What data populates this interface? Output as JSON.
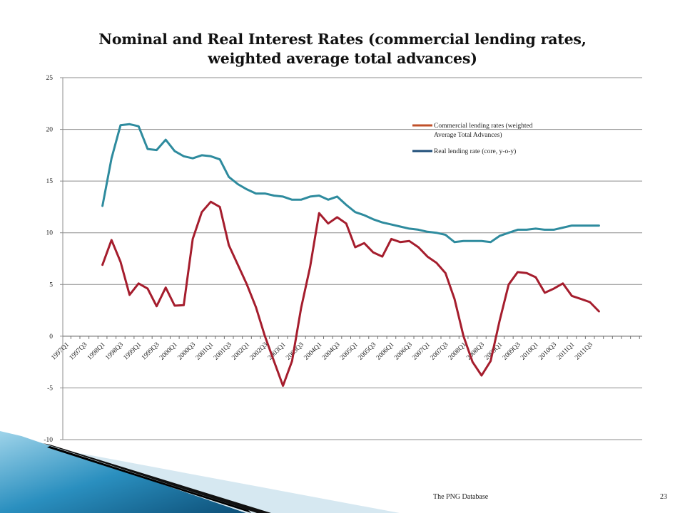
{
  "slide": {
    "footer_source": "The PNG Database",
    "page_number": "23"
  },
  "chart_data": {
    "type": "line",
    "title": "Nominal and Real Interest Rates (commercial lending rates, weighted average total advances)",
    "title_lines": [
      "Nominal and Real Interest Rates (commercial lending rates,",
      "weighted average total advances)"
    ],
    "xlabel": "",
    "ylabel": "",
    "ylim": [
      -10,
      25
    ],
    "yticks": [
      25,
      20,
      15,
      10,
      5,
      0,
      -5,
      -10
    ],
    "grid": true,
    "legend_position": "top-right",
    "x_start": "1997Q1",
    "x_tick_labels": [
      "1997Q1",
      "1997Q3",
      "1998Q1",
      "1998Q3",
      "1999Q1",
      "1999Q3",
      "2000Q1",
      "2000Q3",
      "2001Q1",
      "2001Q3",
      "2002Q1",
      "2002Q3",
      "2003Q1",
      "2003Q3",
      "2004Q1",
      "2004Q3",
      "2005Q1",
      "2005Q3",
      "2006Q1",
      "2006Q3",
      "2007Q1",
      "2007Q3",
      "2008Q1",
      "2008Q3",
      "2009Q1",
      "2009Q3",
      "2010Q1",
      "2010Q3",
      "2011Q1",
      "2011Q3"
    ],
    "series": [
      {
        "name": "Commercial lending rates (weighted Average Total Advances)",
        "color": "#a51d2d",
        "legend_color": "#c0502a",
        "start": "1998Q1",
        "values": [
          6.9,
          9.3,
          7.2,
          4.0,
          5.1,
          4.6,
          2.9,
          4.7,
          2.95,
          3.0,
          9.4,
          12.0,
          13.0,
          12.5,
          8.8,
          6.9,
          5.0,
          2.8,
          0.0,
          -2.4,
          -4.8,
          -2.4,
          2.7,
          6.7,
          11.9,
          10.9,
          11.5,
          10.9,
          8.6,
          9.0,
          8.1,
          7.7,
          9.4,
          9.1,
          9.2,
          8.6,
          7.7,
          7.1,
          6.1,
          3.6,
          0.0,
          -2.5,
          -3.8,
          -2.4,
          1.5,
          5.0,
          6.2,
          6.1,
          5.7,
          4.2,
          4.6,
          5.1,
          3.9,
          3.6,
          3.3,
          2.4
        ]
      },
      {
        "name": "Real lending rate (core, y-o-y)",
        "color": "#2e8b9e",
        "legend_color": "#1f4e79",
        "start": "1998Q1",
        "values": [
          12.6,
          17.2,
          20.4,
          20.5,
          20.3,
          18.1,
          18.0,
          19.0,
          17.9,
          17.4,
          17.2,
          17.5,
          17.4,
          17.1,
          15.4,
          14.7,
          14.2,
          13.8,
          13.8,
          13.6,
          13.5,
          13.2,
          13.2,
          13.5,
          13.6,
          13.2,
          13.5,
          12.7,
          12.0,
          11.7,
          11.3,
          11.0,
          10.8,
          10.6,
          10.4,
          10.3,
          10.1,
          10.0,
          9.8,
          9.1,
          9.2,
          9.2,
          9.2,
          9.1,
          9.7,
          10.0,
          10.3,
          10.3,
          10.4,
          10.3,
          10.3,
          10.5,
          10.7,
          10.7,
          10.7,
          10.7
        ]
      }
    ]
  }
}
